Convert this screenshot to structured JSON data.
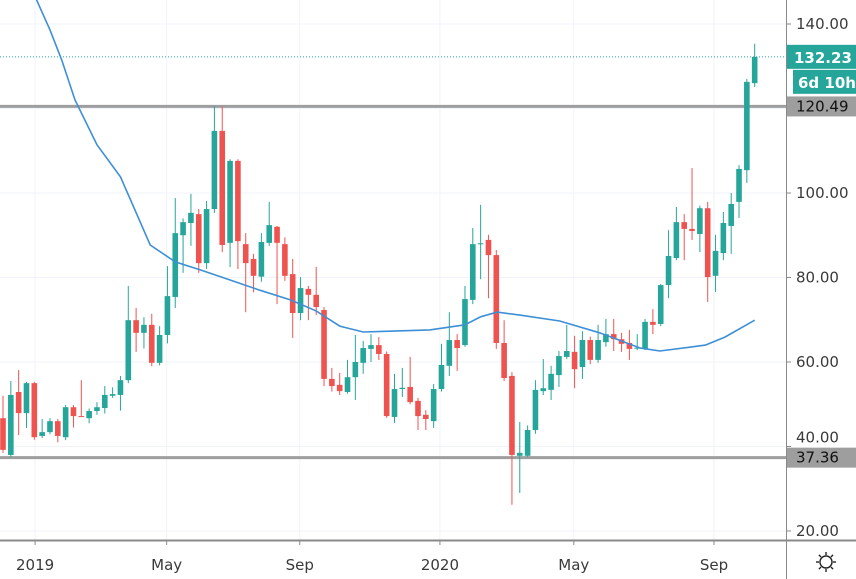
{
  "chart_data": {
    "type": "candlestick",
    "title": "",
    "interval": "weekly",
    "ylim": [
      17.9,
      145.7
    ],
    "y_ticks": [
      {
        "label": "140.00",
        "value": 140
      },
      {
        "label": "100.00",
        "value": 100
      },
      {
        "label": "80.00",
        "value": 80
      },
      {
        "label": "60.00",
        "value": 60
      },
      {
        "label": "40.00",
        "value": 40
      },
      {
        "label": "20.00",
        "value": 20
      }
    ],
    "y_grid": [
      140,
      120,
      100,
      80,
      60,
      40,
      20
    ],
    "x_ticks": [
      {
        "label": "2019",
        "at": 4.1
      },
      {
        "label": "May",
        "at": 20.9
      },
      {
        "label": "Sep",
        "at": 37.9
      },
      {
        "label": "2020",
        "at": 55.8
      },
      {
        "label": "May",
        "at": 72.9
      },
      {
        "label": "Sep",
        "at": 90.8
      }
    ],
    "candles": [
      [
        46.7,
        52.0,
        38.5,
        39.2
      ],
      [
        38.0,
        55.5,
        37.5,
        52.2
      ],
      [
        52.9,
        58.1,
        42.7,
        47.9
      ],
      [
        47.9,
        55.3,
        44.4,
        55.0
      ],
      [
        55.0,
        55.3,
        41.6,
        42.2
      ],
      [
        42.5,
        46.5,
        42.0,
        43.4
      ],
      [
        43.4,
        46.7,
        42.9,
        46.0
      ],
      [
        46.0,
        46.5,
        41.0,
        42.5
      ],
      [
        42.2,
        49.8,
        41.5,
        49.3
      ],
      [
        49.3,
        49.8,
        44.5,
        47.2
      ],
      [
        47.2,
        55.7,
        47.0,
        47.0
      ],
      [
        46.7,
        49.0,
        45.5,
        48.4
      ],
      [
        48.4,
        50.5,
        47.5,
        49.3
      ],
      [
        49.1,
        54.3,
        47.8,
        52.2
      ],
      [
        52.0,
        54.0,
        51.5,
        52.4
      ],
      [
        52.2,
        56.7,
        48.5,
        55.7
      ],
      [
        55.7,
        78.0,
        55.0,
        69.9
      ],
      [
        69.9,
        72.8,
        62.4,
        66.9
      ],
      [
        66.9,
        70.6,
        63.2,
        68.8
      ],
      [
        68.8,
        71.4,
        59.0,
        59.8
      ],
      [
        59.8,
        68.5,
        59.2,
        66.4
      ],
      [
        66.4,
        82.7,
        64.4,
        75.6
      ],
      [
        75.4,
        98.8,
        72.8,
        90.5
      ],
      [
        90.0,
        94.0,
        81.1,
        93.1
      ],
      [
        92.9,
        99.8,
        87.5,
        95.3
      ],
      [
        95.0,
        96.2,
        81.1,
        83.4
      ],
      [
        83.4,
        98.1,
        82.0,
        96.2
      ],
      [
        96.2,
        120.6,
        95.3,
        114.7
      ],
      [
        114.7,
        120.5,
        86.0,
        87.7
      ],
      [
        88.2,
        108.0,
        82.5,
        107.6
      ],
      [
        107.6,
        108.0,
        82.0,
        88.6
      ],
      [
        87.9,
        90.5,
        71.8,
        83.4
      ],
      [
        84.4,
        85.6,
        76.5,
        80.4
      ],
      [
        80.2,
        90.5,
        79.0,
        88.4
      ],
      [
        88.2,
        97.9,
        87.5,
        92.4
      ],
      [
        92.0,
        92.2,
        73.7,
        88.2
      ],
      [
        87.9,
        89.5,
        79.2,
        80.4
      ],
      [
        80.8,
        84.4,
        65.7,
        71.6
      ],
      [
        71.6,
        80.1,
        69.9,
        77.5
      ],
      [
        77.3,
        78.0,
        69.9,
        75.9
      ],
      [
        75.9,
        82.5,
        71.1,
        73.0
      ],
      [
        72.3,
        73.0,
        54.3,
        56.0
      ],
      [
        56.0,
        58.6,
        53.0,
        54.3
      ],
      [
        54.6,
        57.4,
        52.2,
        53.1
      ],
      [
        52.9,
        60.5,
        52.5,
        56.4
      ],
      [
        56.4,
        66.4,
        51.0,
        60.0
      ],
      [
        59.8,
        65.0,
        57.2,
        63.3
      ],
      [
        63.1,
        66.6,
        60.0,
        64.0
      ],
      [
        64.0,
        65.9,
        60.5,
        61.9
      ],
      [
        61.9,
        62.5,
        46.8,
        47.2
      ],
      [
        47.0,
        57.2,
        45.6,
        53.6
      ],
      [
        53.6,
        58.6,
        51.7,
        53.9
      ],
      [
        54.1,
        61.2,
        50.0,
        50.5
      ],
      [
        50.8,
        51.5,
        43.9,
        47.2
      ],
      [
        47.5,
        48.6,
        43.9,
        46.5
      ],
      [
        46.0,
        54.8,
        44.4,
        53.6
      ],
      [
        53.6,
        64.3,
        53.0,
        59.3
      ],
      [
        59.1,
        71.8,
        56.7,
        65.2
      ],
      [
        65.2,
        66.6,
        57.9,
        63.3
      ],
      [
        64.0,
        78.0,
        63.6,
        74.9
      ],
      [
        74.7,
        91.7,
        73.7,
        87.9
      ],
      [
        87.9,
        97.2,
        79.6,
        88.1
      ],
      [
        88.9,
        90.1,
        75.1,
        85.3
      ],
      [
        85.3,
        86.5,
        63.1,
        64.5
      ],
      [
        64.5,
        69.9,
        55.5,
        56.2
      ],
      [
        56.7,
        57.6,
        26.2,
        38.0
      ],
      [
        37.8,
        45.8,
        29.0,
        38.5
      ],
      [
        37.8,
        45.0,
        37.5,
        43.9
      ],
      [
        43.9,
        55.7,
        43.0,
        53.4
      ],
      [
        53.1,
        60.7,
        52.2,
        53.8
      ],
      [
        53.4,
        59.1,
        51.0,
        57.2
      ],
      [
        56.9,
        62.6,
        54.1,
        61.4
      ],
      [
        61.2,
        68.8,
        60.7,
        62.6
      ],
      [
        62.4,
        66.2,
        53.8,
        58.3
      ],
      [
        58.8,
        67.3,
        56.0,
        65.2
      ],
      [
        65.2,
        66.0,
        59.5,
        60.5
      ],
      [
        60.5,
        68.8,
        59.8,
        65.2
      ],
      [
        64.7,
        70.2,
        63.6,
        66.6
      ],
      [
        66.6,
        70.2,
        62.6,
        65.4
      ],
      [
        65.4,
        66.9,
        62.4,
        64.3
      ],
      [
        64.5,
        67.6,
        60.5,
        63.1
      ],
      [
        63.3,
        66.6,
        62.8,
        63.4
      ],
      [
        63.1,
        70.2,
        62.8,
        69.5
      ],
      [
        69.5,
        72.5,
        66.6,
        68.8
      ],
      [
        69.0,
        78.5,
        68.5,
        78.2
      ],
      [
        78.2,
        91.2,
        75.1,
        85.1
      ],
      [
        84.6,
        96.7,
        84.1,
        93.1
      ],
      [
        93.1,
        95.0,
        84.1,
        91.5
      ],
      [
        91.5,
        105.9,
        88.9,
        91.0
      ],
      [
        90.3,
        97.0,
        86.0,
        96.4
      ],
      [
        96.4,
        97.9,
        74.2,
        80.1
      ],
      [
        80.4,
        90.1,
        76.6,
        86.3
      ],
      [
        85.8,
        95.5,
        84.1,
        92.9
      ],
      [
        92.2,
        100.0,
        85.6,
        97.4
      ],
      [
        97.9,
        106.6,
        94.1,
        105.7
      ],
      [
        105.4,
        127.0,
        102.4,
        126.3
      ],
      [
        126.0,
        135.3,
        125.1,
        132.2
      ]
    ],
    "candle_format": [
      "open",
      "high",
      "low",
      "close"
    ],
    "moving_average": [
      [
        4,
        146.9
      ],
      [
        6,
        138.6
      ],
      [
        7.5,
        131.5
      ],
      [
        9.2,
        122.0
      ],
      [
        12,
        111.4
      ],
      [
        15,
        103.8
      ],
      [
        18.8,
        87.7
      ],
      [
        22,
        83.7
      ],
      [
        25.2,
        81.8
      ],
      [
        29,
        79.4
      ],
      [
        32.8,
        77.0
      ],
      [
        36.7,
        74.7
      ],
      [
        40,
        72.1
      ],
      [
        43,
        68.5
      ],
      [
        46,
        67.1
      ],
      [
        49.4,
        67.3
      ],
      [
        54.5,
        67.6
      ],
      [
        59,
        68.8
      ],
      [
        61,
        70.7
      ],
      [
        63.1,
        71.8
      ],
      [
        66,
        71.1
      ],
      [
        71.1,
        69.7
      ],
      [
        76.2,
        66.9
      ],
      [
        81.4,
        63.3
      ],
      [
        83.9,
        62.6
      ],
      [
        87.7,
        63.5
      ],
      [
        89.7,
        64.0
      ],
      [
        92.2,
        65.9
      ],
      [
        96,
        69.9
      ]
    ],
    "horizontal_levels": [
      {
        "value": 120.49,
        "label": "120.49"
      },
      {
        "value": 37.36,
        "label": "37.36"
      }
    ],
    "last_price": {
      "value": 132.23,
      "label": "132.23",
      "countdown": "6d 10h"
    },
    "colors": {
      "up": "#26a69a",
      "down": "#ef5350",
      "ma": "#3d8fd6",
      "level": "#9e9e9e",
      "grid": "#f0f3fa"
    }
  },
  "settings_icon": "gear-icon"
}
